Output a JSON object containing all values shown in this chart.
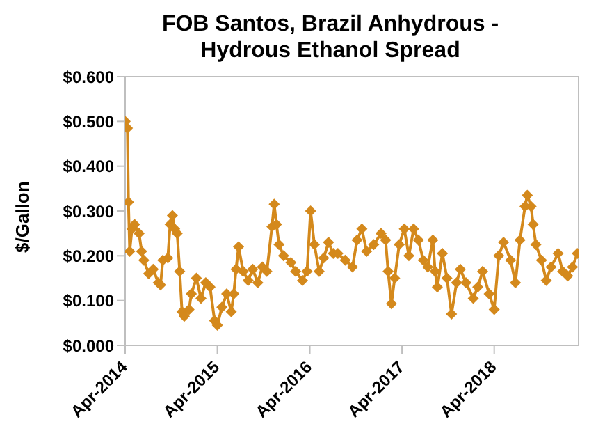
{
  "chart_data": {
    "type": "line",
    "title": "FOB Santos, Brazil Anhydrous - Hydrous Ethanol Spread",
    "ylabel": "$/Gallon",
    "x": [
      "2014-04-01",
      "2014-04-10",
      "2014-04-14",
      "2014-04-19",
      "2014-04-28",
      "2014-05-08",
      "2014-05-26",
      "2014-06-05",
      "2014-06-14",
      "2014-07-03",
      "2014-07-21",
      "2014-08-10",
      "2014-08-19",
      "2014-08-28",
      "2014-09-17",
      "2014-09-26",
      "2014-10-05",
      "2014-10-14",
      "2014-10-24",
      "2014-11-03",
      "2014-11-12",
      "2014-11-21",
      "2014-12-10",
      "2014-12-19",
      "2015-01-08",
      "2015-01-26",
      "2015-02-14",
      "2015-03-03",
      "2015-03-21",
      "2015-04-01",
      "2015-04-19",
      "2015-05-08",
      "2015-05-26",
      "2015-06-05",
      "2015-06-14",
      "2015-06-24",
      "2015-07-12",
      "2015-08-01",
      "2015-08-19",
      "2015-09-08",
      "2015-09-26",
      "2015-10-14",
      "2015-11-03",
      "2015-11-12",
      "2015-11-21",
      "2015-12-01",
      "2015-12-19",
      "2016-01-17",
      "2016-02-05",
      "2016-03-03",
      "2016-03-21",
      "2016-04-04",
      "2016-04-19",
      "2016-05-08",
      "2016-05-26",
      "2016-06-14",
      "2016-07-03",
      "2016-07-21",
      "2016-08-19",
      "2016-09-17",
      "2016-10-05",
      "2016-10-24",
      "2016-11-12",
      "2016-12-10",
      "2017-01-08",
      "2017-01-26",
      "2017-02-05",
      "2017-02-18",
      "2017-03-03",
      "2017-03-21",
      "2017-04-10",
      "2017-04-28",
      "2017-05-17",
      "2017-06-05",
      "2017-06-24",
      "2017-07-12",
      "2017-08-01",
      "2017-08-10",
      "2017-08-19",
      "2017-09-08",
      "2017-09-26",
      "2017-10-14",
      "2017-11-03",
      "2017-11-18",
      "2017-12-10",
      "2018-01-08",
      "2018-01-26",
      "2018-02-14",
      "2018-03-12",
      "2018-04-01",
      "2018-04-19",
      "2018-05-08",
      "2018-06-05",
      "2018-06-24",
      "2018-07-12",
      "2018-08-01",
      "2018-08-10",
      "2018-08-25",
      "2018-09-02",
      "2018-09-13",
      "2018-10-05",
      "2018-10-24",
      "2018-11-12",
      "2018-12-10",
      "2018-12-28",
      "2019-01-17",
      "2019-02-05",
      "2019-02-24"
    ],
    "series": [
      {
        "color": "#d4891c",
        "values": [
          0.5,
          0.485,
          0.32,
          0.21,
          0.26,
          0.27,
          0.25,
          0.21,
          0.19,
          0.16,
          0.17,
          0.14,
          0.135,
          0.19,
          0.195,
          0.27,
          0.29,
          0.26,
          0.25,
          0.165,
          0.075,
          0.065,
          0.08,
          0.115,
          0.15,
          0.105,
          0.14,
          0.13,
          0.055,
          0.045,
          0.085,
          0.115,
          0.075,
          0.115,
          0.17,
          0.22,
          0.165,
          0.145,
          0.17,
          0.14,
          0.175,
          0.165,
          0.265,
          0.315,
          0.27,
          0.225,
          0.2,
          0.185,
          0.165,
          0.145,
          0.165,
          0.3,
          0.225,
          0.165,
          0.195,
          0.23,
          0.205,
          0.205,
          0.19,
          0.175,
          0.235,
          0.26,
          0.21,
          0.225,
          0.25,
          0.235,
          0.165,
          0.093,
          0.15,
          0.225,
          0.26,
          0.2,
          0.26,
          0.235,
          0.19,
          0.175,
          0.235,
          0.165,
          0.13,
          0.205,
          0.15,
          0.07,
          0.14,
          0.17,
          0.14,
          0.105,
          0.13,
          0.165,
          0.115,
          0.08,
          0.2,
          0.23,
          0.19,
          0.14,
          0.235,
          0.31,
          0.335,
          0.31,
          0.27,
          0.225,
          0.19,
          0.145,
          0.175,
          0.205,
          0.165,
          0.155,
          0.175,
          0.205
        ]
      }
    ],
    "xlim": [
      "2014-04-01",
      "2019-03-01"
    ],
    "xticks": [
      {
        "value": "2014-04-01",
        "label": "Apr-2014"
      },
      {
        "value": "2015-04-01",
        "label": "Apr-2015"
      },
      {
        "value": "2016-04-01",
        "label": "Apr-2016"
      },
      {
        "value": "2017-04-01",
        "label": "Apr-2017"
      },
      {
        "value": "2018-04-01",
        "label": "Apr-2018"
      }
    ],
    "ylim": [
      0,
      0.6
    ],
    "yticks": [
      {
        "value": 0,
        "label": "$0.000"
      },
      {
        "value": 0.1,
        "label": "$0.100"
      },
      {
        "value": 0.2,
        "label": "$0.200"
      },
      {
        "value": 0.3,
        "label": "$0.300"
      },
      {
        "value": 0.4,
        "label": "$0.400"
      },
      {
        "value": 0.5,
        "label": "$0.500"
      },
      {
        "value": 0.6,
        "label": "$0.600"
      }
    ],
    "grid": false,
    "legend": false,
    "marker": "diamond",
    "line_style": "solid"
  }
}
